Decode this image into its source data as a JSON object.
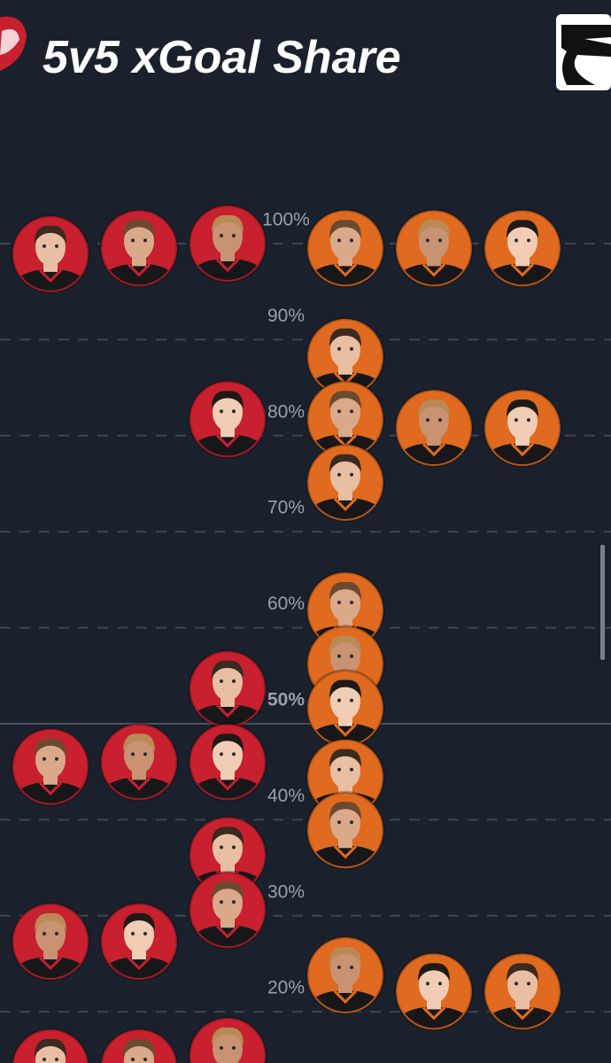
{
  "chart_data": {
    "type": "swarm",
    "title": "5v5 xGoal Share",
    "ylim": [
      12,
      110
    ],
    "yticks": [
      {
        "value": 100,
        "label": "100%"
      },
      {
        "value": 90,
        "label": "90%"
      },
      {
        "value": 80,
        "label": "80%"
      },
      {
        "value": 70,
        "label": "70%"
      },
      {
        "value": 60,
        "label": "60%"
      },
      {
        "value": 50,
        "label": "50%"
      },
      {
        "value": 40,
        "label": "40%"
      },
      {
        "value": 30,
        "label": "30%"
      },
      {
        "value": 20,
        "label": "20%"
      }
    ],
    "highlight_ytick": 50,
    "grid": true,
    "series": [
      {
        "color": "#c8202e",
        "values": [
          98.9,
          99.5,
          100,
          81.7,
          53.6,
          45.5,
          46.0,
          46.0,
          36.3,
          30.6,
          27.3,
          27.3,
          14.2,
          14.2,
          15.4
        ]
      },
      {
        "color": "#e06a1f",
        "values": [
          99.5,
          99.5,
          99.5,
          88.2,
          81.7,
          80.8,
          80.8,
          75.1,
          61.8,
          56.2,
          51.6,
          44.4,
          38.9,
          23.8,
          22.1,
          22.1
        ]
      }
    ]
  }
}
